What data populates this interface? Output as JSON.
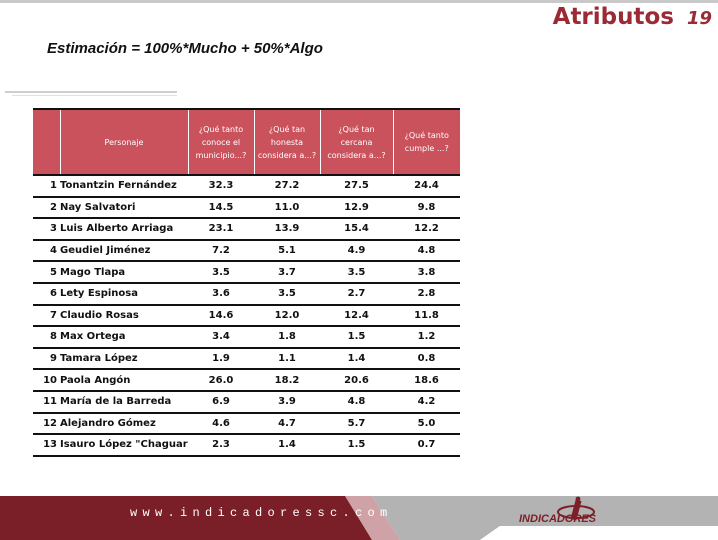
{
  "header": {
    "title": "Atributos",
    "page_number": "19"
  },
  "subtitle": "Estimación = 100%*Mucho + 50%*Algo",
  "table": {
    "columns": [
      "",
      "Personaje",
      "¿Qué tanto conoce el municipio...?",
      "¿Qué tan honesta considera a...?",
      "¿Qué tan cercana considera a...?",
      "¿Qué tanto cumple ...?"
    ],
    "rows": [
      [
        "1",
        "Tonantzin Fernández",
        "32.3",
        "27.2",
        "27.5",
        "24.4"
      ],
      [
        "2",
        "Nay Salvatori",
        "14.5",
        "11.0",
        "12.9",
        "9.8"
      ],
      [
        "3",
        "Luis Alberto Arriaga",
        "23.1",
        "13.9",
        "15.4",
        "12.2"
      ],
      [
        "4",
        "Geudiel Jiménez",
        "7.2",
        "5.1",
        "4.9",
        "4.8"
      ],
      [
        "5",
        "Mago Tlapa",
        "3.5",
        "3.7",
        "3.5",
        "3.8"
      ],
      [
        "6",
        "Lety Espinosa",
        "3.6",
        "3.5",
        "2.7",
        "2.8"
      ],
      [
        "7",
        "Claudio Rosas",
        "14.6",
        "12.0",
        "12.4",
        "11.8"
      ],
      [
        "8",
        "Max Ortega",
        "3.4",
        "1.8",
        "1.5",
        "1.2"
      ],
      [
        "9",
        "Tamara López",
        "1.9",
        "1.1",
        "1.4",
        "0.8"
      ],
      [
        "10",
        "Paola Angón",
        "26.0",
        "18.2",
        "20.6",
        "18.6"
      ],
      [
        "11",
        "María de la Barreda",
        "6.9",
        "3.9",
        "4.8",
        "4.2"
      ],
      [
        "12",
        "Alejandro Gómez",
        "4.6",
        "4.7",
        "5.7",
        "5.0"
      ],
      [
        "13",
        "Isauro López \"Chaguaro\"",
        "2.3",
        "1.4",
        "1.5",
        "0.7"
      ]
    ]
  },
  "footer": {
    "url": "www.indicadoressc.com",
    "brand": "INDICADORES",
    "logo_icon": "indicadores-logo-icon"
  },
  "colors": {
    "accent": "#9b2a35",
    "header_fill": "#c9525c",
    "footer_band": "#7a1f28",
    "footer_gray": "#9a9a9a"
  }
}
